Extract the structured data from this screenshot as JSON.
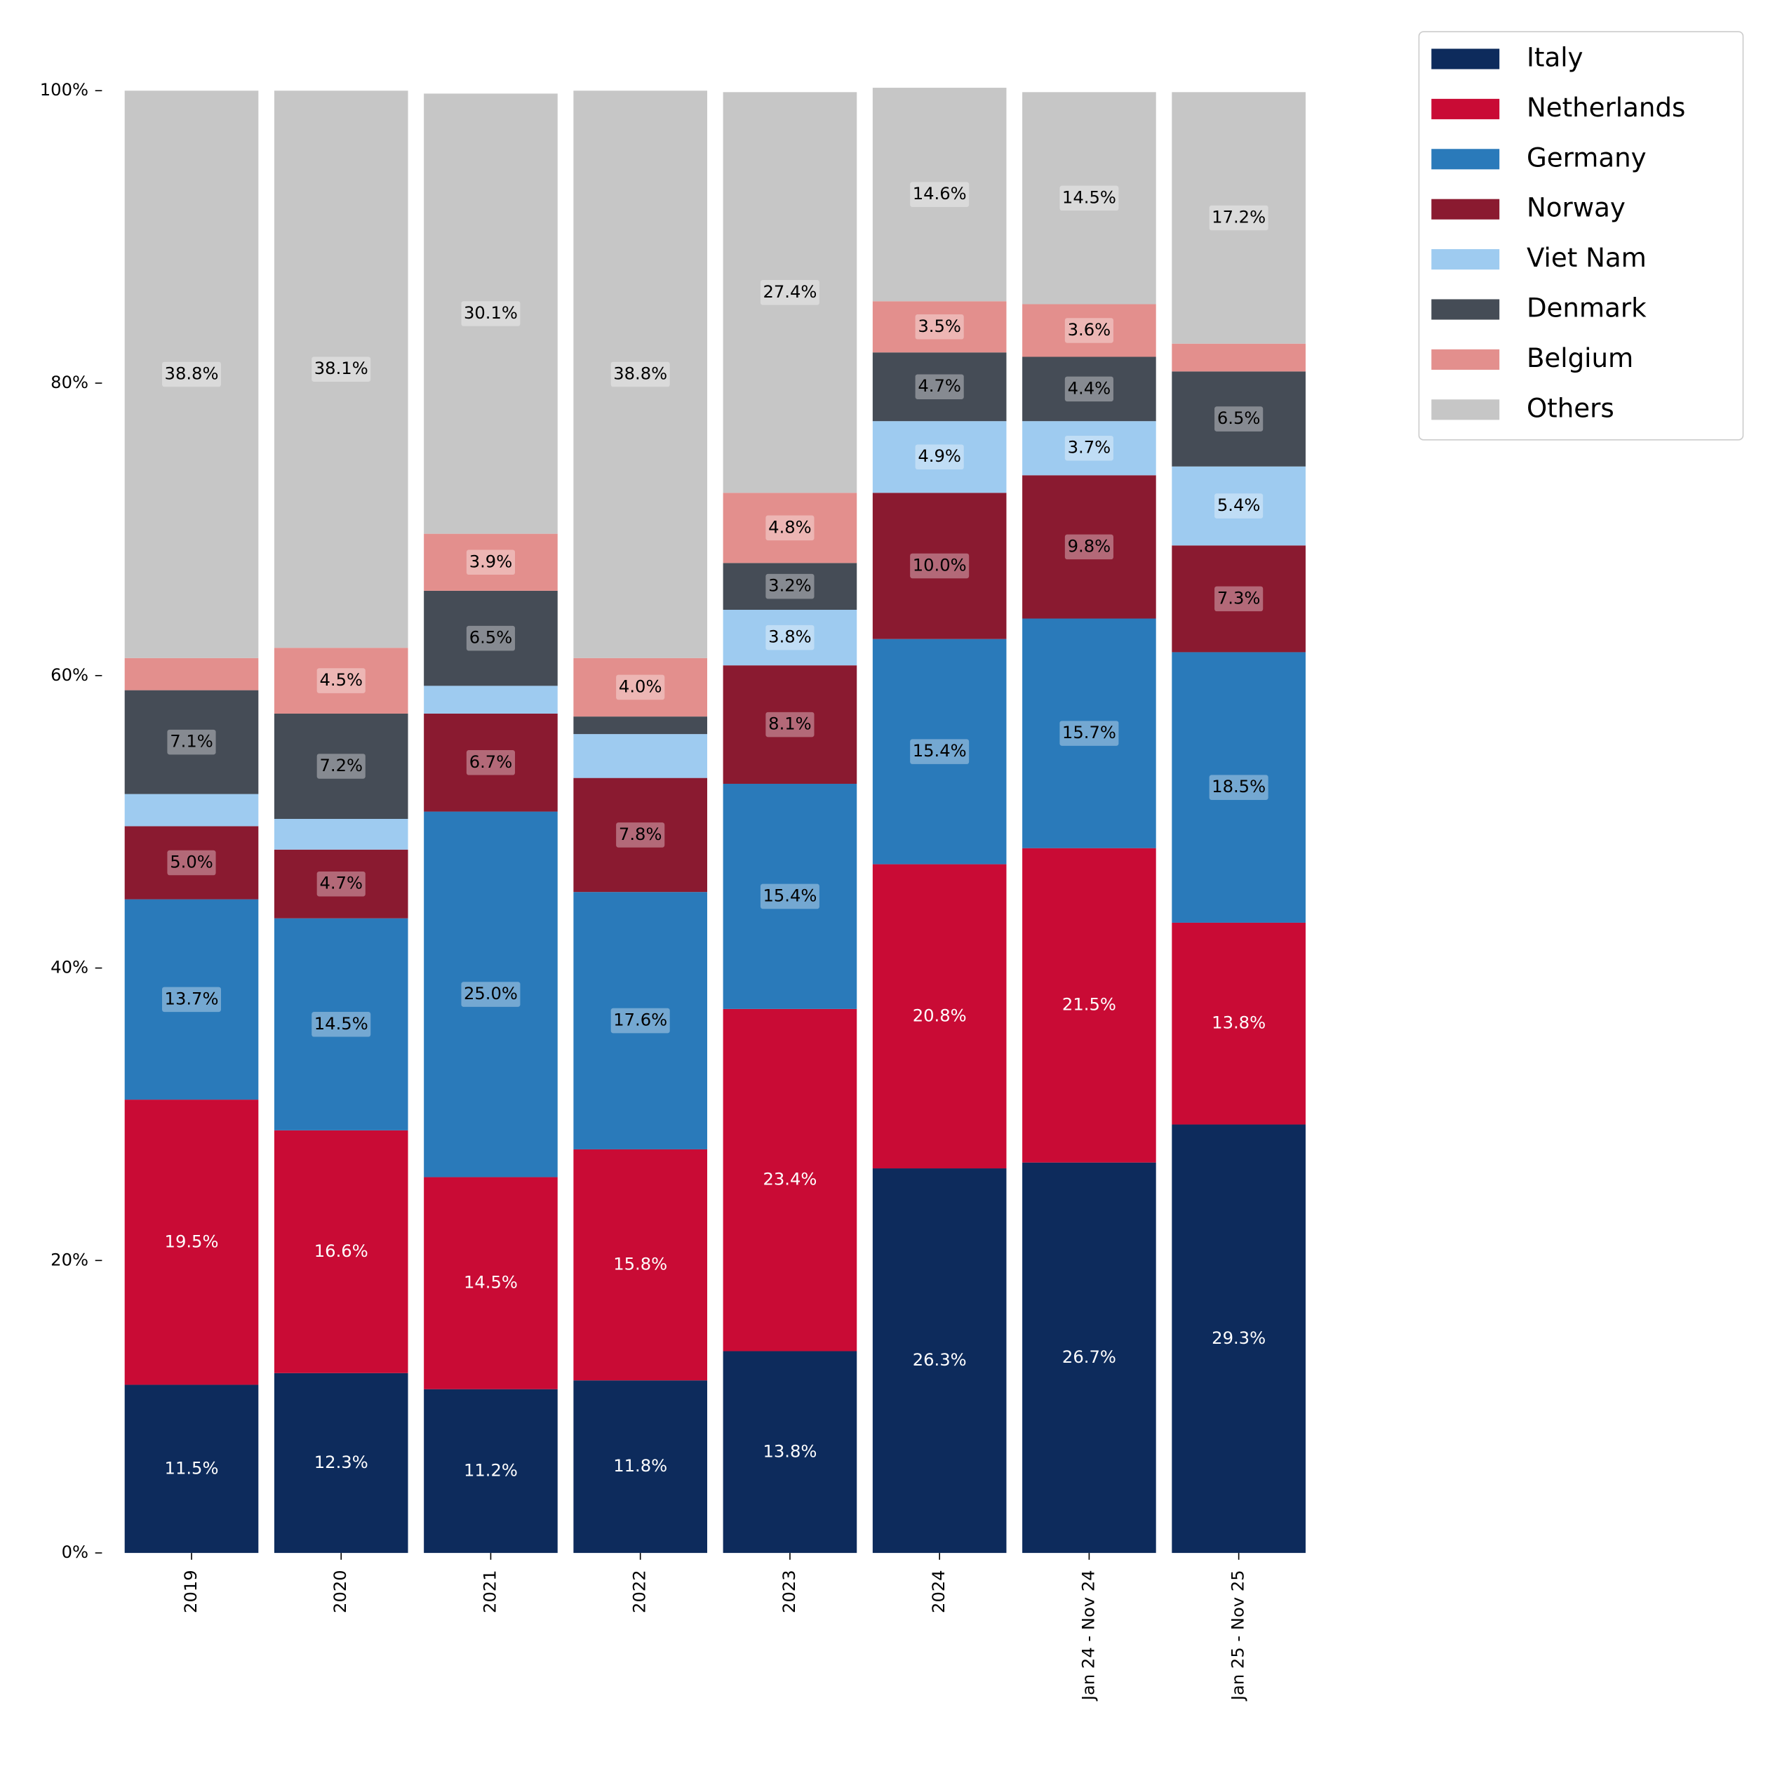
{
  "chart_data": {
    "type": "stacked_bar",
    "categories": [
      "2019",
      "2020",
      "2021",
      "2022",
      "2023",
      "2024",
      "Jan 24 - Nov 24",
      "Jan 25 - Nov 25"
    ],
    "series": [
      {
        "name": "Italy",
        "color": "#0d2b5c",
        "label_color": "#ffffff",
        "values": [
          11.5,
          12.3,
          11.2,
          11.8,
          13.8,
          26.3,
          26.7,
          29.3
        ],
        "value_labels": [
          "11.5%",
          "12.3%",
          "11.2%",
          "11.8%",
          "13.8%",
          "26.3%",
          "26.7%",
          "29.3%"
        ]
      },
      {
        "name": "Netherlands",
        "color": "#c90b35",
        "label_color": "#ffffff",
        "values": [
          19.5,
          16.6,
          14.5,
          15.8,
          23.4,
          20.8,
          21.5,
          13.8
        ],
        "value_labels": [
          "19.5%",
          "16.6%",
          "14.5%",
          "15.8%",
          "23.4%",
          "20.8%",
          "21.5%",
          "13.8%"
        ]
      },
      {
        "name": "Germany",
        "color": "#2a7aba",
        "label_color": "#000000",
        "values": [
          13.7,
          14.5,
          25.0,
          17.6,
          15.4,
          15.4,
          15.7,
          18.5
        ],
        "value_labels": [
          "13.7%",
          "14.5%",
          "25.0%",
          "17.6%",
          "15.4%",
          "15.4%",
          "15.7%",
          "18.5%"
        ]
      },
      {
        "name": "Norway",
        "color": "#8a1a30",
        "label_color": "#000000",
        "values": [
          5.0,
          4.7,
          6.7,
          7.8,
          8.1,
          10.0,
          9.8,
          7.3
        ],
        "value_labels": [
          "5.0%",
          "4.7%",
          "6.7%",
          "7.8%",
          "8.1%",
          "10.0%",
          "9.8%",
          "7.3%"
        ]
      },
      {
        "name": "Viet Nam",
        "color": "#9ecbf0",
        "label_color": "#000000",
        "values": [
          2.2,
          2.1,
          1.9,
          3.0,
          3.8,
          4.9,
          3.7,
          5.4
        ],
        "value_labels": [
          null,
          null,
          null,
          null,
          "3.8%",
          "4.9%",
          "3.7%",
          "5.4%"
        ]
      },
      {
        "name": "Denmark",
        "color": "#454c56",
        "label_color": "#000000",
        "values": [
          7.1,
          7.2,
          6.5,
          1.2,
          3.2,
          4.7,
          4.4,
          6.5
        ],
        "value_labels": [
          "7.1%",
          "7.2%",
          "6.5%",
          null,
          "3.2%",
          "4.7%",
          "4.4%",
          "6.5%"
        ]
      },
      {
        "name": "Belgium",
        "color": "#e38f8d",
        "label_color": "#000000",
        "values": [
          2.2,
          4.5,
          3.9,
          4.0,
          4.8,
          3.5,
          3.6,
          1.9
        ],
        "value_labels": [
          null,
          "4.5%",
          "3.9%",
          "4.0%",
          "4.8%",
          "3.5%",
          "3.6%",
          null
        ]
      },
      {
        "name": "Others",
        "color": "#c6c6c6",
        "label_color": "#000000",
        "values": [
          38.8,
          38.1,
          30.1,
          38.8,
          27.4,
          14.6,
          14.5,
          17.2
        ],
        "value_labels": [
          "38.8%",
          "38.1%",
          "30.1%",
          "38.8%",
          "27.4%",
          "14.6%",
          "14.5%",
          "17.2%"
        ]
      }
    ],
    "ylim": [
      0,
      100
    ],
    "yticks": [
      {
        "value": 0,
        "label": "0%"
      },
      {
        "value": 20,
        "label": "20%"
      },
      {
        "value": 40,
        "label": "40%"
      },
      {
        "value": 60,
        "label": "60%"
      },
      {
        "value": 80,
        "label": "80%"
      },
      {
        "value": 100,
        "label": "100%"
      }
    ],
    "legend": "upper right outside"
  }
}
